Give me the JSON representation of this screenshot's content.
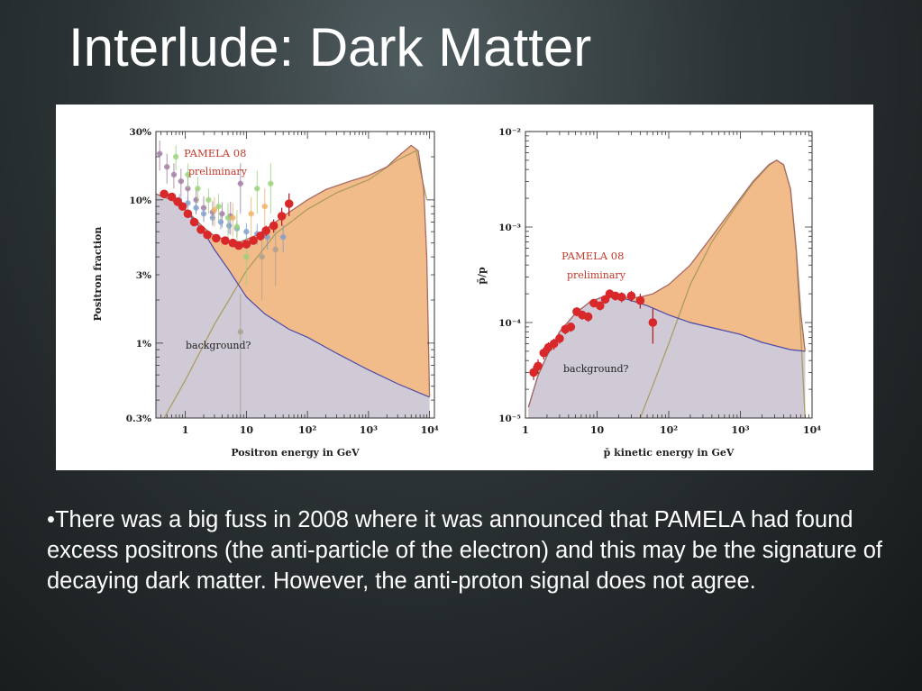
{
  "slide": {
    "title": "Interlude: Dark Matter",
    "bullet_marker": "•",
    "bullet_text": "There was a big fuss in 2008 where it was announced that PAMELA had found excess positrons (the anti-particle of the electron) and this may be the signature of decaying dark matter. However, the anti-proton signal does not agree."
  },
  "colors": {
    "background_fill": "#cfcad6",
    "signal_fill": "#f2bb8a",
    "total_line": "#a86a64",
    "background_line": "#4b4aa8",
    "component_line": "#a89a5c",
    "pamela_points": "#d8282a",
    "pamela_label": "#c0392b"
  },
  "chart_data": [
    {
      "type": "area",
      "ylabel": "Positron fraction",
      "xlabel": "Positron energy in GeV",
      "xscale": "log",
      "yscale": "log",
      "xlim": [
        0.33,
        12000
      ],
      "ylim": [
        0.003,
        0.3
      ],
      "x_ticks": [
        "1",
        "10",
        "10²",
        "10³",
        "10⁴"
      ],
      "y_ticks": [
        "30%",
        "10%",
        "3%",
        "1%",
        "0.3%"
      ],
      "label_pamela": "PAMELA 08",
      "label_prelim": "preliminary",
      "label_background": "background?",
      "background_curve": {
        "x": [
          0.33,
          0.6,
          1,
          2,
          3,
          5,
          10,
          20,
          50,
          100,
          300,
          1000,
          3000,
          10000
        ],
        "y": [
          0.11,
          0.1,
          0.085,
          0.06,
          0.045,
          0.033,
          0.021,
          0.016,
          0.0125,
          0.011,
          0.0085,
          0.0065,
          0.0052,
          0.0042
        ]
      },
      "total_curve": {
        "x": [
          0.33,
          0.6,
          1,
          2,
          3,
          5,
          8,
          10,
          15,
          20,
          30,
          50,
          100,
          200,
          500,
          1000,
          2000,
          3000,
          5000,
          6500,
          8000,
          9000,
          10000
        ],
        "y": [
          0.11,
          0.1,
          0.086,
          0.064,
          0.056,
          0.052,
          0.051,
          0.053,
          0.057,
          0.062,
          0.07,
          0.082,
          0.1,
          0.118,
          0.135,
          0.148,
          0.17,
          0.2,
          0.24,
          0.22,
          0.12,
          0.04,
          0.0042
        ]
      },
      "signal_curve": {
        "x": [
          0.45,
          1,
          3,
          10,
          30,
          100,
          300,
          1000,
          3000,
          6000,
          9000
        ],
        "y": [
          0.003,
          0.0055,
          0.0135,
          0.032,
          0.058,
          0.086,
          0.112,
          0.138,
          0.19,
          0.22,
          0.1
        ]
      },
      "pamela": {
        "x": [
          0.45,
          0.6,
          0.75,
          0.9,
          1.1,
          1.4,
          1.8,
          2.3,
          3.2,
          4.5,
          6,
          7.5,
          10,
          13,
          17,
          21,
          28,
          38,
          50
        ],
        "y": [
          0.11,
          0.105,
          0.097,
          0.09,
          0.08,
          0.07,
          0.062,
          0.057,
          0.054,
          0.052,
          0.05,
          0.048,
          0.049,
          0.052,
          0.056,
          0.061,
          0.066,
          0.077,
          0.094
        ],
        "err": [
          0.004,
          0.004,
          0.004,
          0.004,
          0.003,
          0.003,
          0.003,
          0.003,
          0.003,
          0.003,
          0.003,
          0.003,
          0.003,
          0.003,
          0.004,
          0.005,
          0.007,
          0.011,
          0.017
        ]
      },
      "other_data": [
        {
          "color": "#a07aa0",
          "x": [
            0.38,
            0.5,
            0.65,
            0.85,
            1.1,
            1.5,
            2.0,
            2.8,
            4.0,
            5.5,
            8
          ],
          "y": [
            0.21,
            0.17,
            0.15,
            0.135,
            0.12,
            0.1,
            0.088,
            0.082,
            0.08,
            0.077,
            0.13
          ],
          "err": [
            0.05,
            0.04,
            0.03,
            0.03,
            0.025,
            0.02,
            0.018,
            0.016,
            0.016,
            0.02,
            0.05
          ]
        },
        {
          "color": "#7f9dcb",
          "x": [
            0.8,
            1.1,
            1.5,
            2.0,
            2.8,
            3.8,
            5.2,
            7,
            10,
            15,
            22,
            40
          ],
          "y": [
            0.1,
            0.095,
            0.088,
            0.08,
            0.075,
            0.07,
            0.066,
            0.063,
            0.06,
            0.058,
            0.055,
            0.055
          ],
          "err": [
            0.01,
            0.01,
            0.009,
            0.008,
            0.008,
            0.008,
            0.008,
            0.008,
            0.009,
            0.01,
            0.01,
            0.012
          ]
        },
        {
          "color": "#9ad07a",
          "x": [
            0.7,
            1.1,
            1.6,
            2.4,
            3.5,
            5,
            7,
            10,
            15,
            25
          ],
          "y": [
            0.2,
            0.15,
            0.12,
            0.1,
            0.09,
            0.075,
            0.065,
            0.04,
            0.12,
            0.13
          ],
          "err": [
            0.04,
            0.03,
            0.025,
            0.02,
            0.02,
            0.02,
            0.02,
            0.015,
            0.04,
            0.05
          ]
        },
        {
          "color": "#f0b060",
          "x": [
            3,
            6,
            12,
            20
          ],
          "y": [
            0.085,
            0.075,
            0.08,
            0.09
          ],
          "err": [
            0.02,
            0.02,
            0.025,
            0.03
          ]
        },
        {
          "color": "#a8a090",
          "x": [
            8,
            18,
            30
          ],
          "y": [
            0.012,
            0.04,
            0.045
          ],
          "err": [
            0.01,
            0.02,
            0.02
          ]
        }
      ]
    },
    {
      "type": "area",
      "ylabel": "p̄/p",
      "xlabel": "p̄ kinetic energy in GeV",
      "xscale": "log",
      "yscale": "log",
      "xlim": [
        1,
        10000
      ],
      "ylim": [
        1e-05,
        0.01
      ],
      "x_ticks": [
        "1",
        "10",
        "10²",
        "10³",
        "10⁴"
      ],
      "y_ticks": [
        "10⁻²",
        "10⁻³",
        "10⁻⁴",
        "10⁻⁵"
      ],
      "label_pamela": "PAMELA 08",
      "label_prelim": "preliminary",
      "label_background": "background?",
      "background_curve": {
        "x": [
          1.1,
          1.5,
          2,
          3,
          5,
          8,
          12,
          20,
          30,
          50,
          100,
          200,
          500,
          1000,
          2000,
          5000,
          8000
        ],
        "y": [
          1.3e-05,
          2.8e-05,
          4.5e-05,
          8e-05,
          0.000125,
          0.000165,
          0.000185,
          0.000185,
          0.00017,
          0.00015,
          0.00012,
          0.0001,
          8.5e-05,
          7.5e-05,
          6.2e-05,
          5.2e-05,
          5e-05
        ]
      },
      "total_curve": {
        "x": [
          1.1,
          1.5,
          2,
          3,
          5,
          8,
          12,
          20,
          30,
          40,
          60,
          100,
          200,
          400,
          800,
          1500,
          2500,
          3200,
          4000,
          5000,
          6000,
          7000,
          8000
        ],
        "y": [
          1.3e-05,
          2.8e-05,
          4.5e-05,
          8e-05,
          0.000125,
          0.000165,
          0.000186,
          0.000188,
          0.00018,
          0.000185,
          0.0002,
          0.00025,
          0.0004,
          0.0008,
          0.0016,
          0.003,
          0.0045,
          0.005,
          0.0045,
          0.0025,
          0.0006,
          0.00012,
          5e-05
        ]
      },
      "signal_curve": {
        "x": [
          40,
          60,
          100,
          200,
          400,
          800,
          1500,
          2500,
          3200,
          4000,
          5000,
          6000,
          7000,
          8000
        ],
        "y": [
          1e-05,
          2.2e-05,
          6e-05,
          0.00025,
          0.0007,
          0.0015,
          0.0029,
          0.0044,
          0.005,
          0.0045,
          0.0025,
          0.00055,
          7e-05,
          1e-05
        ]
      },
      "pamela": {
        "x": [
          1.3,
          1.5,
          1.8,
          2.1,
          2.5,
          3.0,
          3.6,
          4.3,
          5.2,
          6.2,
          7.5,
          9,
          11,
          13,
          15,
          18,
          22,
          30,
          40,
          60
        ],
        "y": [
          3e-05,
          3.5e-05,
          4.8e-05,
          5.5e-05,
          6e-05,
          6.8e-05,
          8.5e-05,
          9e-05,
          0.00013,
          0.00012,
          0.000115,
          0.00016,
          0.00015,
          0.000175,
          0.0002,
          0.00019,
          0.000185,
          0.00019,
          0.00017,
          0.0001
        ],
        "err": [
          5e-06,
          6e-06,
          7e-06,
          7e-06,
          8e-06,
          8e-06,
          1e-05,
          1e-05,
          1.4e-05,
          1.3e-05,
          1.3e-05,
          1.6e-05,
          1.6e-05,
          1.8e-05,
          2e-05,
          2e-05,
          2.2e-05,
          2.5e-05,
          3e-05,
          4e-05
        ]
      }
    }
  ]
}
